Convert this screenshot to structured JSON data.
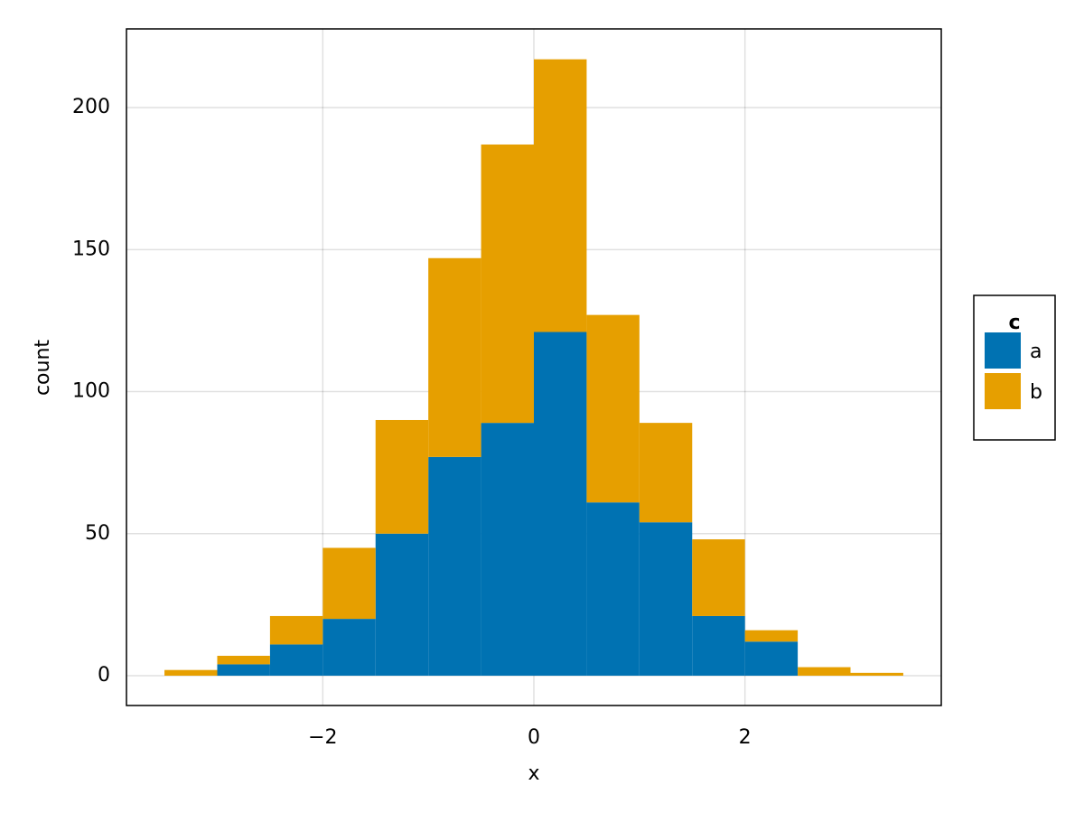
{
  "chart_data": {
    "type": "histogram",
    "stacked": true,
    "x_label": "x",
    "y_label": "count",
    "bins": [
      -3.5,
      -3,
      -2.5,
      -2,
      -1.5,
      -1,
      -0.5,
      0,
      0.5,
      1,
      1.5,
      2,
      2.5,
      3,
      3.5
    ],
    "series": [
      {
        "name": "a",
        "color": "#0072b2",
        "values": [
          0,
          4,
          11,
          20,
          50,
          77,
          89,
          121,
          61,
          54,
          21,
          12,
          0,
          0
        ]
      },
      {
        "name": "b",
        "color": "#e69f00",
        "values": [
          2,
          3,
          10,
          25,
          40,
          70,
          98,
          96,
          66,
          35,
          27,
          4,
          3,
          1
        ]
      }
    ],
    "legend_title": "c",
    "legend_position": "right",
    "xlim": [
      -3.86,
      3.86
    ],
    "ylim": [
      -10.5,
      227.7
    ],
    "xticks": [
      {
        "value": -2,
        "label": "−2"
      },
      0,
      2
    ],
    "yticks": [
      0,
      50,
      100,
      150,
      200
    ],
    "grid": true
  }
}
